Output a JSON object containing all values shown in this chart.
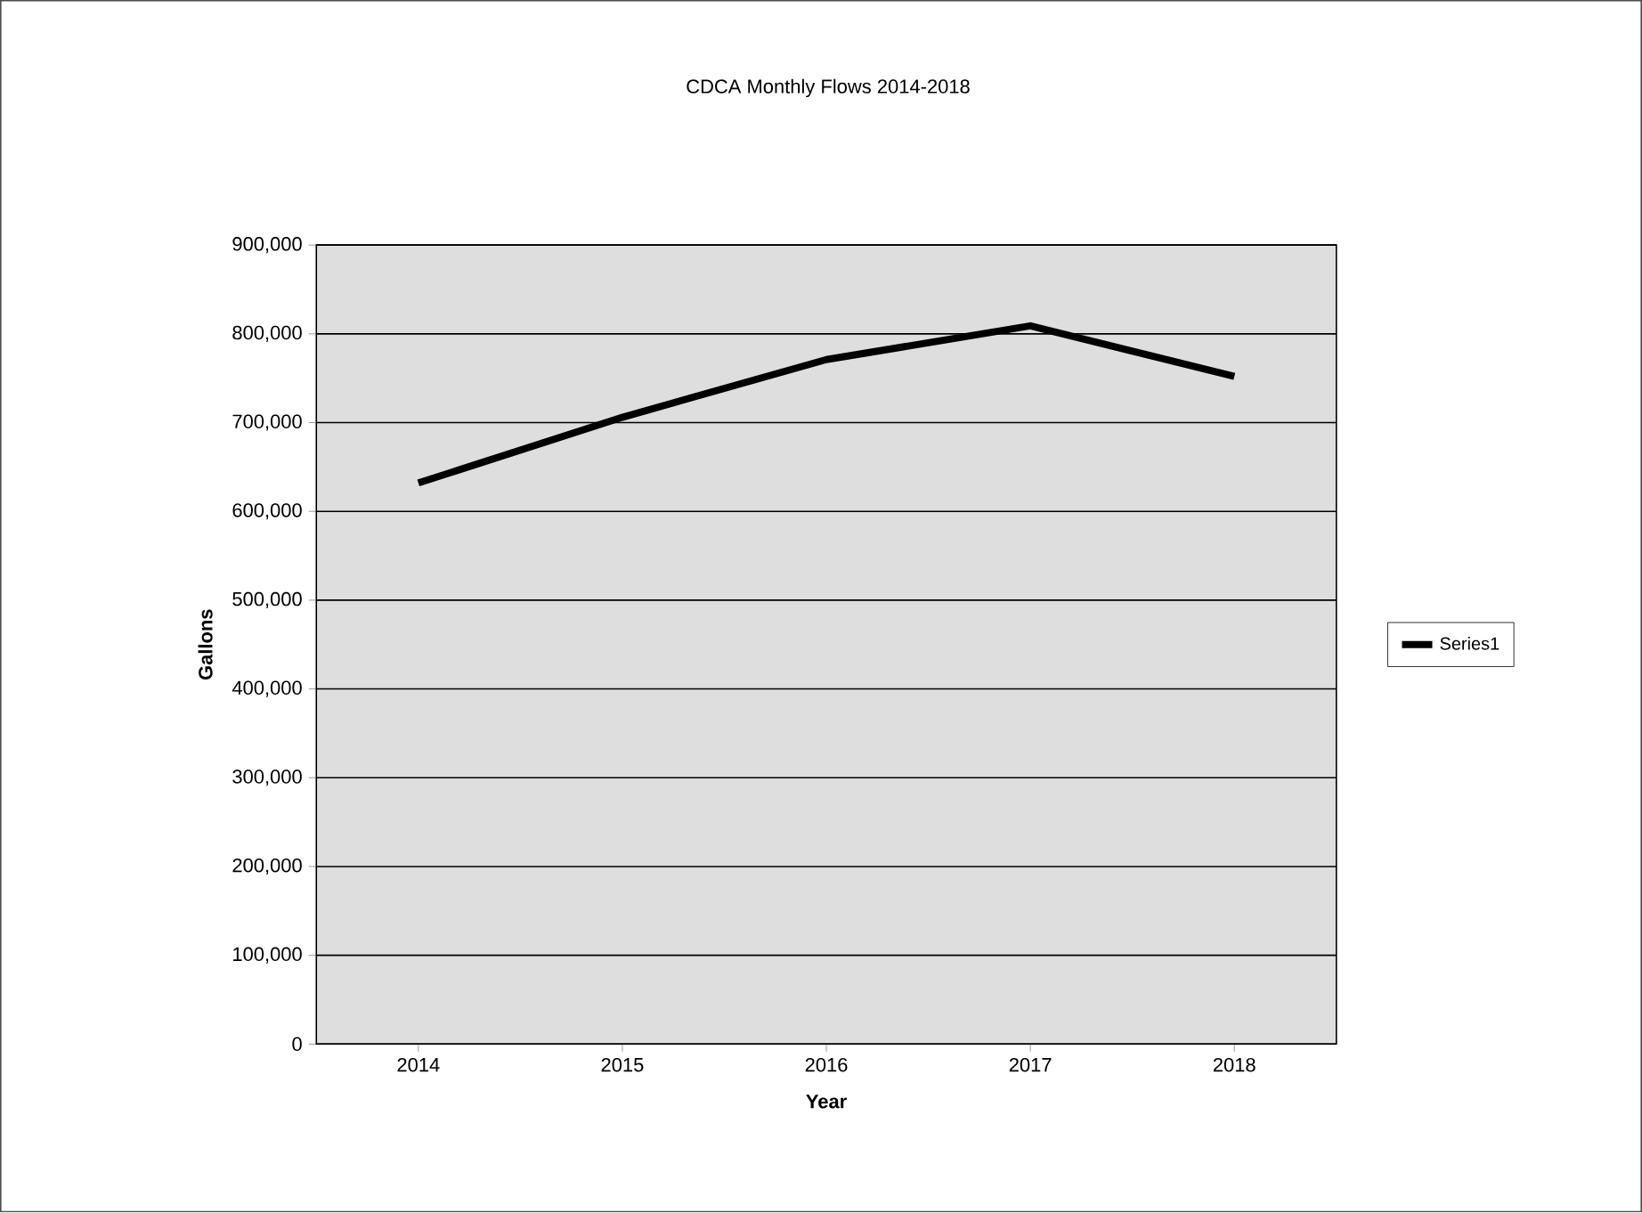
{
  "chart_data": {
    "type": "line",
    "title": "CDCA Monthly Flows 2014-2018",
    "xlabel": "Year",
    "ylabel": "Gallons",
    "categories": [
      "2014",
      "2015",
      "2016",
      "2017",
      "2018"
    ],
    "series": [
      {
        "name": "Series1",
        "color": "#000000",
        "values": [
          632000,
          706000,
          771000,
          809000,
          752000
        ]
      }
    ],
    "ylim": [
      0,
      900000
    ],
    "yticks": [
      {
        "value": 0,
        "label": "0"
      },
      {
        "value": 100000,
        "label": "100,000"
      },
      {
        "value": 200000,
        "label": "200,000"
      },
      {
        "value": 300000,
        "label": "300,000"
      },
      {
        "value": 400000,
        "label": "400,000"
      },
      {
        "value": 500000,
        "label": "500,000"
      },
      {
        "value": 600000,
        "label": "600,000"
      },
      {
        "value": 700000,
        "label": "700,000"
      },
      {
        "value": 800000,
        "label": "800,000"
      },
      {
        "value": 900000,
        "label": "900,000"
      }
    ],
    "grid": "y",
    "legend": "right"
  }
}
